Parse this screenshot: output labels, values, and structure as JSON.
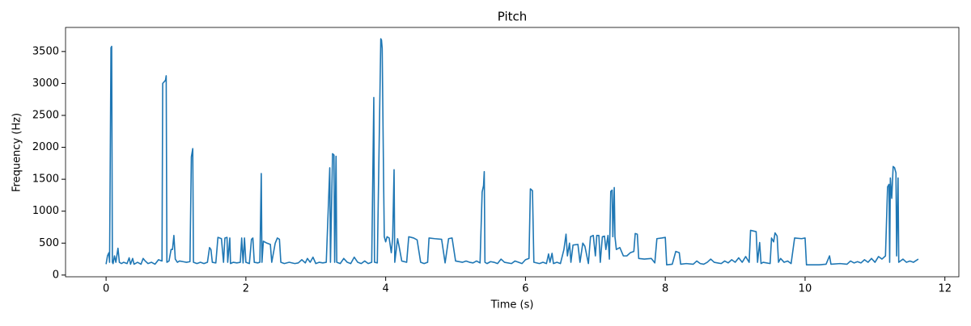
{
  "chart_data": {
    "type": "line",
    "title": "Pitch",
    "x_label": "Time (s)",
    "y_label": "Frequency (Hz)",
    "xlim": [
      -0.58,
      12.2
    ],
    "ylim": [
      -27,
      3877
    ],
    "xticks": [
      0,
      2,
      4,
      6,
      8,
      10,
      12
    ],
    "yticks": [
      0,
      500,
      1000,
      1500,
      2000,
      2500,
      3000,
      3500
    ],
    "grid": false,
    "series": [
      {
        "color": "#1f77b4",
        "x": [
          0.0,
          0.02,
          0.04,
          0.05,
          0.07,
          0.08,
          0.09,
          0.1,
          0.12,
          0.14,
          0.17,
          0.19,
          0.22,
          0.25,
          0.3,
          0.33,
          0.35,
          0.38,
          0.4,
          0.45,
          0.5,
          0.53,
          0.56,
          0.6,
          0.65,
          0.7,
          0.75,
          0.8,
          0.81,
          0.85,
          0.86,
          0.87,
          0.9,
          0.93,
          0.95,
          0.97,
          0.99,
          1.02,
          1.05,
          1.1,
          1.15,
          1.2,
          1.22,
          1.24,
          1.25,
          1.3,
          1.35,
          1.4,
          1.45,
          1.48,
          1.5,
          1.52,
          1.57,
          1.6,
          1.65,
          1.68,
          1.7,
          1.73,
          1.74,
          1.77,
          1.78,
          1.82,
          1.87,
          1.92,
          1.94,
          1.96,
          1.98,
          2.0,
          2.05,
          2.08,
          2.1,
          2.12,
          2.17,
          2.2,
          2.22,
          2.23,
          2.25,
          2.3,
          2.35,
          2.37,
          2.42,
          2.45,
          2.48,
          2.5,
          2.55,
          2.62,
          2.7,
          2.75,
          2.8,
          2.85,
          2.88,
          2.92,
          2.96,
          3.0,
          3.05,
          3.1,
          3.15,
          3.2,
          3.21,
          3.24,
          3.26,
          3.27,
          3.29,
          3.3,
          3.35,
          3.4,
          3.45,
          3.5,
          3.55,
          3.6,
          3.65,
          3.7,
          3.75,
          3.8,
          3.83,
          3.84,
          3.88,
          3.93,
          3.94,
          3.95,
          3.97,
          3.98,
          4.0,
          4.02,
          4.05,
          4.08,
          4.1,
          4.12,
          4.13,
          4.17,
          4.2,
          4.23,
          4.3,
          4.33,
          4.4,
          4.45,
          4.5,
          4.55,
          4.6,
          4.62,
          4.7,
          4.8,
          4.85,
          4.9,
          4.95,
          5.0,
          5.1,
          5.15,
          5.2,
          5.25,
          5.3,
          5.35,
          5.38,
          5.4,
          5.41,
          5.42,
          5.45,
          5.5,
          5.55,
          5.6,
          5.65,
          5.7,
          5.8,
          5.85,
          5.9,
          5.95,
          6.0,
          6.05,
          6.07,
          6.1,
          6.12,
          6.2,
          6.25,
          6.3,
          6.33,
          6.35,
          6.38,
          6.4,
          6.45,
          6.5,
          6.55,
          6.58,
          6.6,
          6.63,
          6.65,
          6.68,
          6.75,
          6.78,
          6.82,
          6.85,
          6.9,
          6.93,
          6.97,
          7.0,
          7.02,
          7.05,
          7.07,
          7.1,
          7.13,
          7.15,
          7.18,
          7.2,
          7.22,
          7.24,
          7.25,
          7.27,
          7.28,
          7.3,
          7.35,
          7.4,
          7.45,
          7.5,
          7.55,
          7.57,
          7.6,
          7.62,
          7.7,
          7.8,
          7.85,
          7.88,
          7.95,
          8.0,
          8.02,
          8.1,
          8.15,
          8.2,
          8.22,
          8.3,
          8.4,
          8.45,
          8.5,
          8.55,
          8.6,
          8.65,
          8.7,
          8.8,
          8.85,
          8.9,
          8.95,
          9.0,
          9.05,
          9.1,
          9.15,
          9.2,
          9.22,
          9.3,
          9.32,
          9.35,
          9.37,
          9.4,
          9.5,
          9.52,
          9.55,
          9.57,
          9.6,
          9.62,
          9.65,
          9.7,
          9.75,
          9.8,
          9.85,
          9.95,
          10.0,
          10.02,
          10.2,
          10.3,
          10.35,
          10.37,
          10.5,
          10.6,
          10.65,
          10.7,
          10.75,
          10.8,
          10.85,
          10.9,
          10.95,
          11.0,
          11.05,
          11.1,
          11.15,
          11.18,
          11.2,
          11.21,
          11.22,
          11.24,
          11.26,
          11.28,
          11.3,
          11.31,
          11.33,
          11.34,
          11.4,
          11.45,
          11.5,
          11.55,
          11.62
        ],
        "values": [
          170,
          300,
          350,
          200,
          3560,
          3580,
          200,
          180,
          300,
          200,
          420,
          200,
          180,
          200,
          180,
          270,
          170,
          260,
          170,
          200,
          170,
          260,
          220,
          180,
          200,
          170,
          240,
          220,
          3000,
          3050,
          3120,
          200,
          220,
          400,
          400,
          620,
          250,
          200,
          220,
          210,
          200,
          210,
          1850,
          1980,
          200,
          180,
          200,
          180,
          200,
          430,
          400,
          200,
          190,
          590,
          570,
          200,
          580,
          590,
          200,
          580,
          180,
          200,
          190,
          200,
          580,
          190,
          580,
          200,
          180,
          560,
          580,
          200,
          190,
          200,
          1590,
          200,
          530,
          500,
          480,
          200,
          500,
          580,
          560,
          200,
          180,
          200,
          180,
          190,
          240,
          190,
          260,
          200,
          280,
          180,
          200,
          190,
          200,
          1680,
          200,
          1900,
          1880,
          200,
          1860,
          200,
          180,
          260,
          200,
          180,
          280,
          200,
          180,
          220,
          180,
          200,
          2780,
          200,
          190,
          3700,
          3680,
          3550,
          1500,
          600,
          520,
          600,
          580,
          350,
          580,
          1650,
          200,
          570,
          400,
          220,
          200,
          600,
          580,
          550,
          200,
          180,
          200,
          580,
          570,
          560,
          190,
          570,
          580,
          220,
          200,
          220,
          200,
          190,
          220,
          190,
          1300,
          1400,
          1620,
          200,
          180,
          210,
          200,
          180,
          250,
          200,
          180,
          220,
          200,
          180,
          240,
          260,
          1350,
          1320,
          200,
          180,
          200,
          180,
          330,
          200,
          340,
          180,
          200,
          180,
          400,
          640,
          300,
          500,
          200,
          470,
          480,
          200,
          500,
          450,
          180,
          600,
          620,
          300,
          620,
          620,
          200,
          600,
          610,
          400,
          620,
          250,
          1310,
          1330,
          600,
          1370,
          600,
          400,
          430,
          300,
          300,
          350,
          370,
          650,
          640,
          260,
          250,
          260,
          190,
          570,
          580,
          590,
          160,
          170,
          370,
          350,
          170,
          180,
          170,
          220,
          180,
          170,
          200,
          250,
          200,
          180,
          220,
          190,
          240,
          200,
          270,
          200,
          290,
          200,
          700,
          680,
          200,
          510,
          180,
          200,
          180,
          580,
          520,
          660,
          610,
          200,
          260,
          200,
          220,
          180,
          580,
          570,
          580,
          160,
          160,
          170,
          300,
          170,
          180,
          170,
          220,
          190,
          210,
          190,
          240,
          200,
          260,
          200,
          290,
          250,
          300,
          1380,
          1420,
          200,
          1520,
          1200,
          1700,
          1680,
          1600,
          300,
          1520,
          200,
          250,
          200,
          220,
          200,
          250
        ]
      }
    ]
  }
}
